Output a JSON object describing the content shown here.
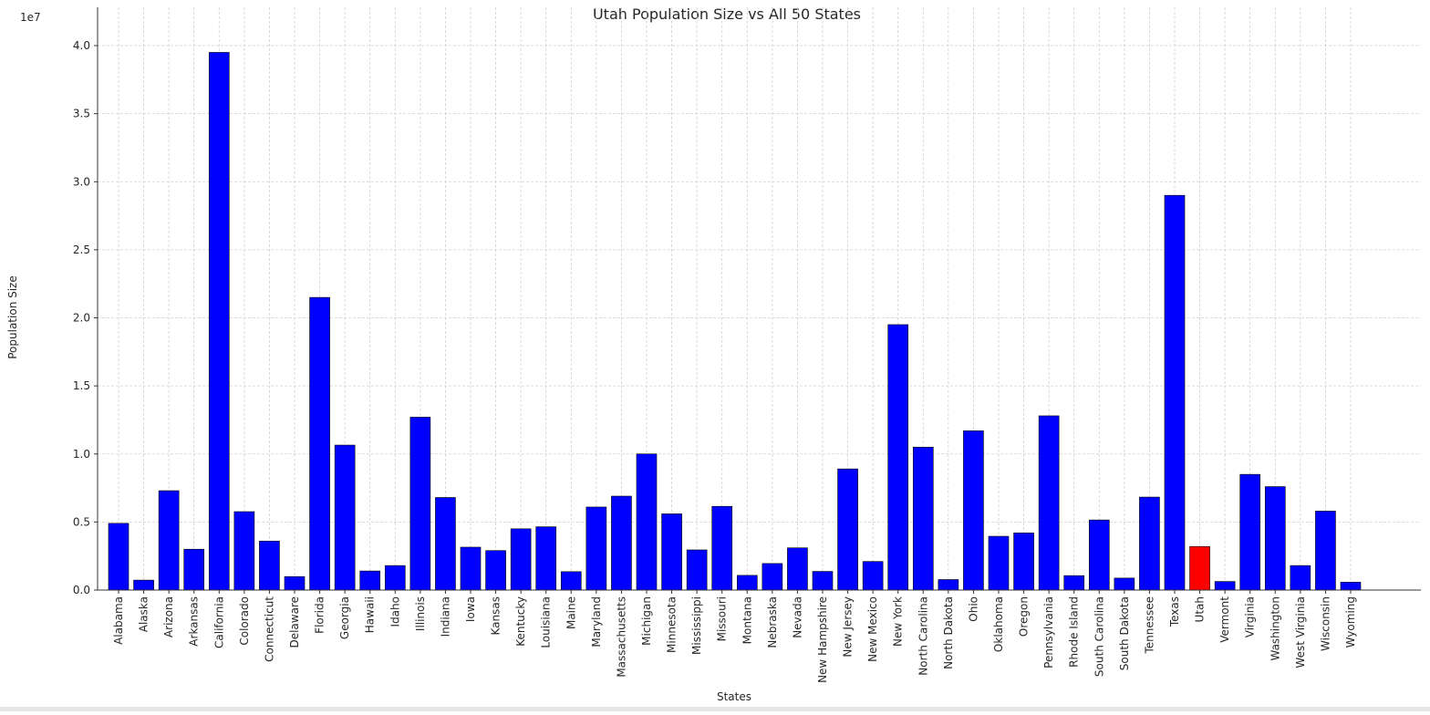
{
  "chart_data": {
    "type": "bar",
    "title": "Utah Population Size vs All 50 States",
    "xlabel": "States",
    "ylabel": "Population Size",
    "y_offset_label": "1e7",
    "ylim": [
      0,
      40000000.0
    ],
    "yticks": [
      "0.0",
      "0.5",
      "1.0",
      "1.5",
      "2.0",
      "2.5",
      "3.0",
      "3.5",
      "4.0"
    ],
    "ytick_values": [
      0,
      5000000,
      10000000,
      15000000,
      20000000,
      25000000,
      30000000,
      35000000,
      40000000
    ],
    "grid": true,
    "colors": {
      "default": "#0000ff",
      "highlight": "#ff0000"
    },
    "highlight": "Utah",
    "categories": [
      "Alabama",
      "Alaska",
      "Arizona",
      "Arkansas",
      "California",
      "Colorado",
      "Connecticut",
      "Delaware",
      "Florida",
      "Georgia",
      "Hawaii",
      "Idaho",
      "Illinois",
      "Indiana",
      "Iowa",
      "Kansas",
      "Kentucky",
      "Louisiana",
      "Maine",
      "Maryland",
      "Massachusetts",
      "Michigan",
      "Minnesota",
      "Mississippi",
      "Missouri",
      "Montana",
      "Nebraska",
      "Nevada",
      "New Hampshire",
      "New Jersey",
      "New Mexico",
      "New York",
      "North Carolina",
      "North Dakota",
      "Ohio",
      "Oklahoma",
      "Oregon",
      "Pennsylvania",
      "Rhode Island",
      "South Carolina",
      "South Dakota",
      "Tennessee",
      "Texas",
      "Utah",
      "Vermont",
      "Virginia",
      "Washington",
      "West Virginia",
      "Wisconsin",
      "Wyoming"
    ],
    "values": [
      4900000,
      730000,
      7300000,
      3000000,
      39500000,
      5760000,
      3600000,
      990000,
      21500000,
      10650000,
      1400000,
      1800000,
      12700000,
      6800000,
      3150000,
      2900000,
      4500000,
      4650000,
      1350000,
      6100000,
      6900000,
      10000000,
      5600000,
      2950000,
      6150000,
      1080000,
      1950000,
      3100000,
      1370000,
      8900000,
      2100000,
      19500000,
      10500000,
      770000,
      11700000,
      3950000,
      4200000,
      12800000,
      1060000,
      5150000,
      880000,
      6830000,
      29000000,
      3200000,
      630000,
      8500000,
      7600000,
      1800000,
      5800000,
      580000
    ]
  }
}
